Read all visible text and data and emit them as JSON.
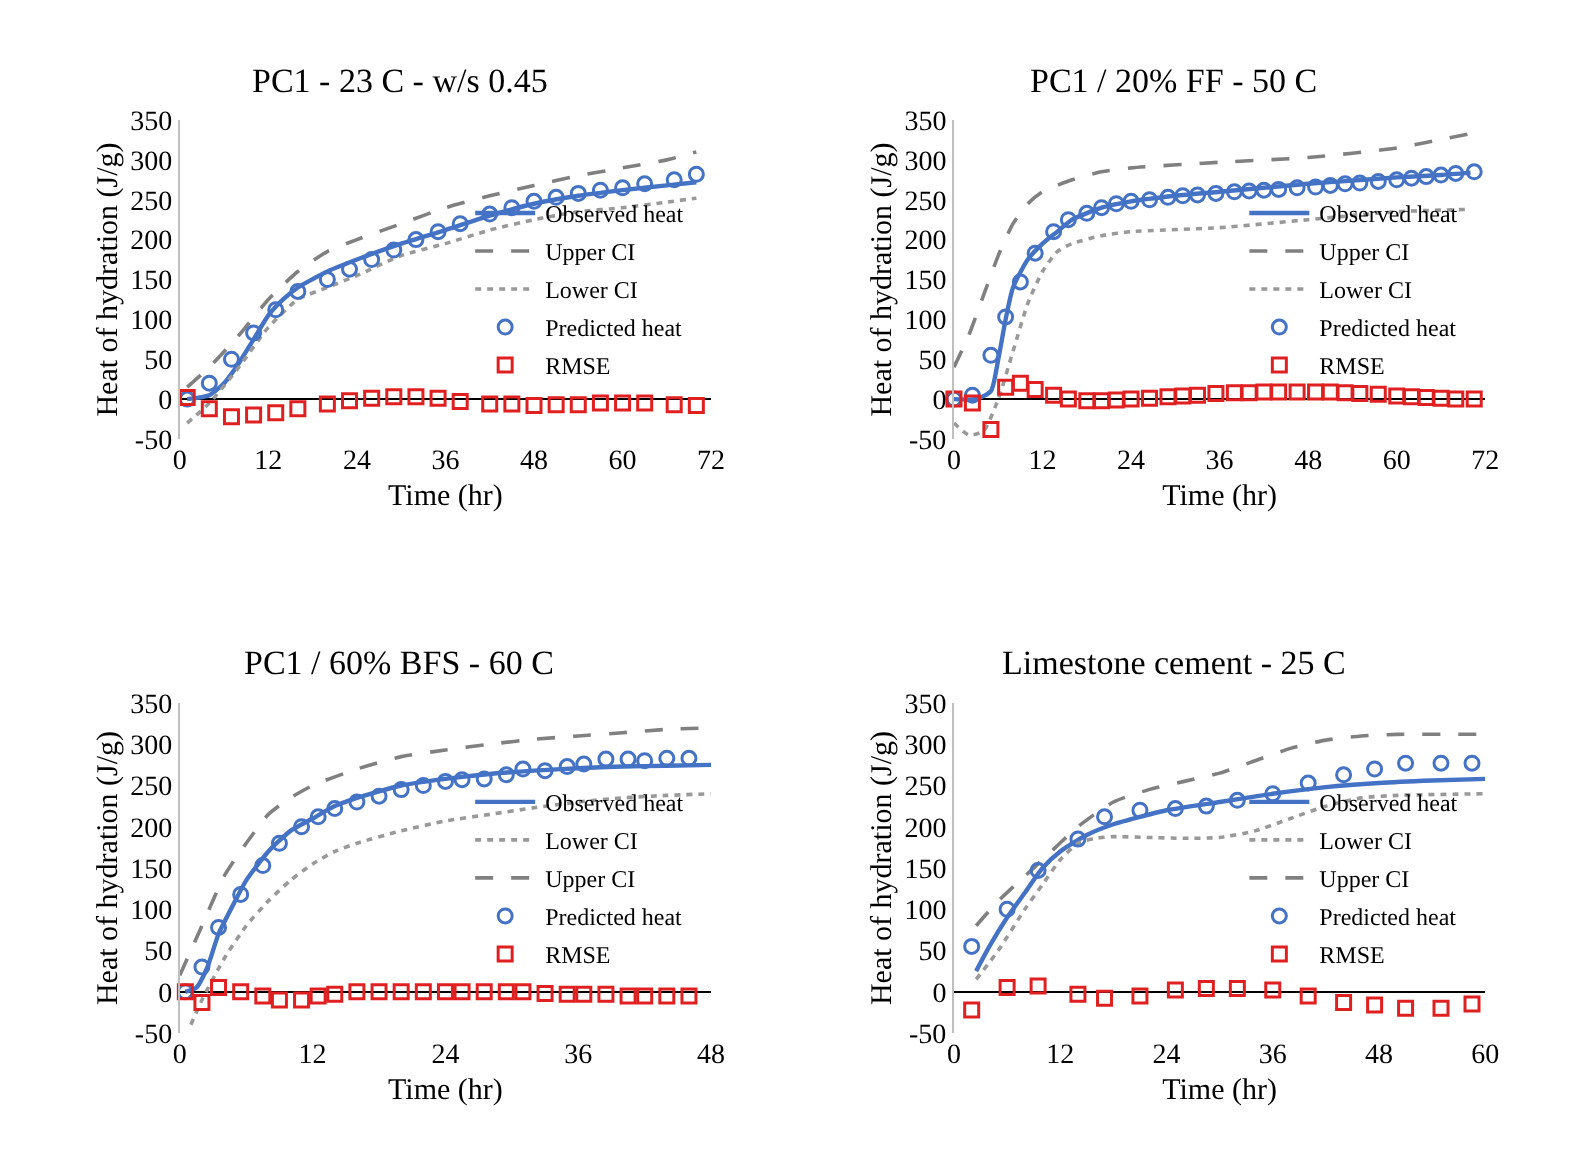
{
  "chart_data": [
    {
      "type": "line",
      "title": "PC1 - 23 C - w/s 0.45",
      "xlabel": "Time (hr)",
      "ylabel": "Heat of hydration (J/g)",
      "xlim": [
        0,
        72
      ],
      "xticks": [
        0,
        12,
        24,
        36,
        48,
        60,
        72
      ],
      "ylim": [
        -50,
        350
      ],
      "yticks": [
        -50,
        0,
        50,
        100,
        150,
        200,
        250,
        300,
        350
      ],
      "legend": "right",
      "series": [
        {
          "name": "Observed heat",
          "type": "line",
          "color": "#4472c4",
          "line_style": "solid",
          "x": [
            1,
            4,
            6,
            8,
            10,
            12,
            14,
            16,
            20,
            24,
            30,
            36,
            42,
            48,
            54,
            60,
            66,
            70
          ],
          "values": [
            0,
            5,
            20,
            45,
            75,
            105,
            125,
            140,
            160,
            175,
            195,
            212,
            230,
            245,
            255,
            262,
            268,
            272
          ]
        },
        {
          "name": "Upper CI",
          "type": "line",
          "color": "#808080",
          "line_style": "dashed",
          "x": [
            1,
            4,
            8,
            12,
            16,
            20,
            24,
            30,
            36,
            42,
            48,
            54,
            60,
            66,
            70
          ],
          "values": [
            15,
            40,
            80,
            125,
            160,
            185,
            200,
            220,
            240,
            255,
            268,
            280,
            290,
            300,
            310
          ]
        },
        {
          "name": "Lower CI",
          "type": "line",
          "color": "#999999",
          "line_style": "dotted",
          "x": [
            1,
            4,
            8,
            12,
            16,
            20,
            24,
            30,
            36,
            42,
            48,
            54,
            60,
            66,
            70
          ],
          "values": [
            -30,
            -5,
            40,
            90,
            125,
            140,
            155,
            180,
            195,
            212,
            225,
            235,
            240,
            247,
            252
          ]
        },
        {
          "name": "Predicted heat",
          "type": "scatter",
          "color": "#4472c4",
          "marker": "circle",
          "x": [
            1,
            4,
            7,
            10,
            13,
            16,
            20,
            23,
            26,
            29,
            32,
            35,
            38,
            42,
            45,
            48,
            51,
            54,
            57,
            60,
            63,
            67,
            70
          ],
          "values": [
            0,
            20,
            50,
            83,
            112,
            135,
            150,
            163,
            175,
            187,
            200,
            210,
            220,
            232,
            240,
            248,
            253,
            258,
            262,
            265,
            270,
            275,
            282
          ]
        },
        {
          "name": "RMSE",
          "type": "scatter",
          "color": "#e02020",
          "marker": "square",
          "x": [
            1,
            4,
            7,
            10,
            13,
            16,
            20,
            23,
            26,
            29,
            32,
            35,
            38,
            42,
            45,
            48,
            51,
            54,
            57,
            60,
            63,
            67,
            70
          ],
          "values": [
            2,
            -12,
            -22,
            -20,
            -17,
            -12,
            -6,
            -2,
            1,
            3,
            3,
            1,
            -3,
            -6,
            -6,
            -8,
            -7,
            -7,
            -5,
            -5,
            -5,
            -7,
            -8
          ]
        }
      ]
    },
    {
      "type": "line",
      "title": "PC1 / 20% FF - 50 C",
      "xlabel": "Time (hr)",
      "ylabel": "Heat of hydration (J/g)",
      "xlim": [
        0,
        72
      ],
      "xticks": [
        0,
        12,
        24,
        36,
        48,
        60,
        72
      ],
      "ylim": [
        -50,
        350
      ],
      "yticks": [
        -50,
        0,
        50,
        100,
        150,
        200,
        250,
        300,
        350
      ],
      "legend": "right",
      "series": [
        {
          "name": "Observed heat",
          "type": "line",
          "color": "#4472c4",
          "line_style": "solid",
          "x": [
            0,
            3,
            5,
            6,
            7,
            8,
            10,
            12,
            14,
            16,
            20,
            24,
            30,
            36,
            42,
            48,
            54,
            60,
            66,
            70
          ],
          "values": [
            0,
            0,
            10,
            50,
            100,
            140,
            175,
            195,
            210,
            225,
            240,
            248,
            255,
            260,
            265,
            270,
            274,
            278,
            281,
            284
          ]
        },
        {
          "name": "Upper CI",
          "type": "line",
          "color": "#808080",
          "line_style": "dashed",
          "x": [
            0,
            2,
            4,
            6,
            8,
            10,
            12,
            16,
            20,
            24,
            36,
            48,
            60,
            70
          ],
          "values": [
            40,
            80,
            130,
            180,
            220,
            245,
            260,
            275,
            285,
            290,
            297,
            303,
            315,
            333
          ]
        },
        {
          "name": "Lower CI",
          "type": "line",
          "color": "#999999",
          "line_style": "dotted",
          "x": [
            0,
            2,
            4,
            6,
            8,
            10,
            12,
            14,
            16,
            20,
            24,
            36,
            48,
            60,
            70
          ],
          "values": [
            -30,
            -45,
            -40,
            0,
            60,
            120,
            160,
            185,
            195,
            205,
            210,
            215,
            225,
            235,
            238
          ]
        },
        {
          "name": "Predicted heat",
          "type": "scatter",
          "color": "#4472c4",
          "marker": "circle",
          "x": [
            0,
            2.5,
            5,
            7,
            9,
            11,
            13.5,
            15.5,
            18,
            20,
            22,
            24,
            26.5,
            29,
            31,
            33,
            35.5,
            38,
            40,
            42,
            44,
            46.5,
            49,
            51,
            53,
            55,
            57.5,
            60,
            62,
            64,
            66,
            68,
            70.5
          ],
          "values": [
            0,
            5,
            55,
            103,
            147,
            183,
            210,
            225,
            233,
            240,
            245,
            248,
            250,
            253,
            255,
            256,
            258,
            260,
            261,
            262,
            263,
            265,
            266,
            268,
            270,
            271,
            273,
            275,
            277,
            279,
            281,
            283,
            285
          ]
        },
        {
          "name": "RMSE",
          "type": "scatter",
          "color": "#e02020",
          "marker": "square",
          "x": [
            0,
            2.5,
            5,
            7,
            9,
            11,
            13.5,
            15.5,
            18,
            20,
            22,
            24,
            26.5,
            29,
            31,
            33,
            35.5,
            38,
            40,
            42,
            44,
            46.5,
            49,
            51,
            53,
            55,
            57.5,
            60,
            62,
            64,
            66,
            68,
            70.5
          ],
          "values": [
            0,
            -5,
            -38,
            15,
            20,
            12,
            5,
            0,
            -2,
            -2,
            -1,
            0,
            1,
            3,
            4,
            5,
            7,
            8,
            8,
            9,
            9,
            9,
            9,
            9,
            8,
            7,
            6,
            4,
            3,
            2,
            1,
            0,
            0
          ]
        }
      ]
    },
    {
      "type": "line",
      "title": "PC1 / 60% BFS - 60 C",
      "xlabel": "Time (hr)",
      "ylabel": "Heat of hydration (J/g)",
      "xlim": [
        0,
        48
      ],
      "xticks": [
        0,
        12,
        24,
        36,
        48
      ],
      "ylim": [
        -50,
        350
      ],
      "yticks": [
        -50,
        0,
        50,
        100,
        150,
        200,
        250,
        300,
        350
      ],
      "legend": "right",
      "series": [
        {
          "name": "Observed heat",
          "type": "line",
          "color": "#4472c4",
          "line_style": "solid",
          "x": [
            0.5,
            1.5,
            2.5,
            3.5,
            5,
            6,
            8,
            10,
            12,
            14,
            16,
            18,
            20,
            24,
            28,
            32,
            36,
            40,
            44,
            48
          ],
          "values": [
            0,
            5,
            30,
            70,
            110,
            135,
            170,
            195,
            210,
            225,
            235,
            243,
            250,
            258,
            264,
            268,
            271,
            273,
            274,
            275
          ]
        },
        {
          "name": "Lower CI",
          "type": "line",
          "color": "#999999",
          "line_style": "dotted",
          "x": [
            1,
            2,
            4,
            6,
            8,
            10,
            12,
            14,
            16,
            20,
            24,
            28,
            32,
            36,
            40,
            44,
            48
          ],
          "values": [
            -40,
            -10,
            40,
            80,
            110,
            135,
            155,
            170,
            180,
            195,
            207,
            215,
            223,
            230,
            235,
            238,
            240
          ]
        },
        {
          "name": "Upper CI",
          "type": "line",
          "color": "#808080",
          "line_style": "dashed",
          "x": [
            0,
            2,
            4,
            6,
            8,
            10,
            12,
            16,
            20,
            24,
            28,
            32,
            36,
            40,
            44,
            48
          ],
          "values": [
            20,
            80,
            140,
            180,
            215,
            235,
            250,
            270,
            285,
            293,
            300,
            306,
            310,
            314,
            318,
            320
          ]
        },
        {
          "name": "Predicted heat",
          "type": "scatter",
          "color": "#4472c4",
          "marker": "circle",
          "x": [
            0.5,
            2,
            3.5,
            5.5,
            7.5,
            9,
            11,
            12.5,
            14,
            16,
            18,
            20,
            22,
            24,
            25.5,
            27.5,
            29.5,
            31,
            33,
            35,
            36.5,
            38.5,
            40.5,
            42,
            44,
            46
          ],
          "values": [
            0,
            30,
            78,
            118,
            153,
            180,
            200,
            212,
            222,
            230,
            237,
            245,
            250,
            255,
            257,
            258,
            263,
            270,
            268,
            273,
            276,
            282,
            282,
            280,
            283,
            283
          ]
        },
        {
          "name": "RMSE",
          "type": "scatter",
          "color": "#e02020",
          "marker": "square",
          "x": [
            0.5,
            2,
            3.5,
            5.5,
            7.5,
            9,
            11,
            12.5,
            14,
            16,
            18,
            20,
            22,
            24,
            25.5,
            27.5,
            29.5,
            31,
            33,
            35,
            36.5,
            38.5,
            40.5,
            42,
            44,
            46
          ],
          "values": [
            0,
            -13,
            5,
            0,
            -5,
            -10,
            -10,
            -5,
            -3,
            0,
            0,
            0,
            0,
            0,
            0,
            0,
            0,
            0,
            -2,
            -3,
            -3,
            -3,
            -5,
            -5,
            -5,
            -5
          ]
        }
      ]
    },
    {
      "type": "line",
      "title": "Limestone cement - 25 C",
      "xlabel": "Time (hr)",
      "ylabel": "Heat of hydration (J/g)",
      "xlim": [
        0,
        60
      ],
      "xticks": [
        0,
        12,
        24,
        36,
        48,
        60
      ],
      "ylim": [
        -50,
        350
      ],
      "yticks": [
        -50,
        0,
        50,
        100,
        150,
        200,
        250,
        300,
        350
      ],
      "legend": "right",
      "series": [
        {
          "name": "Observed heat",
          "type": "line",
          "color": "#4472c4",
          "line_style": "solid",
          "x": [
            2.5,
            4,
            6,
            8,
            10,
            12,
            15,
            18,
            21,
            24,
            30,
            36,
            42,
            48,
            54,
            60
          ],
          "values": [
            25,
            55,
            90,
            120,
            150,
            170,
            190,
            203,
            212,
            220,
            230,
            240,
            248,
            253,
            256,
            258
          ]
        },
        {
          "name": "Lower CI",
          "type": "line",
          "color": "#999999",
          "line_style": "dotted",
          "x": [
            2.5,
            5,
            8,
            10,
            12,
            14,
            16,
            18,
            22,
            26,
            30,
            34,
            38,
            42,
            46,
            50,
            60
          ],
          "values": [
            15,
            50,
            100,
            130,
            160,
            180,
            186,
            188,
            187,
            186,
            187,
            195,
            210,
            225,
            235,
            238,
            240
          ]
        },
        {
          "name": "Upper CI",
          "type": "line",
          "color": "#808080",
          "line_style": "dashed",
          "x": [
            2.5,
            5,
            8,
            10,
            14,
            18,
            22,
            26,
            30,
            34,
            38,
            42,
            46,
            50,
            60
          ],
          "values": [
            80,
            110,
            140,
            160,
            200,
            230,
            245,
            255,
            265,
            280,
            295,
            305,
            310,
            312,
            312
          ]
        },
        {
          "name": "Predicted heat",
          "type": "scatter",
          "color": "#4472c4",
          "marker": "circle",
          "x": [
            2,
            6,
            9.5,
            14,
            17,
            21,
            25,
            28.5,
            32,
            36,
            40,
            44,
            47.5,
            51,
            55,
            58.5
          ],
          "values": [
            55,
            100,
            147,
            185,
            212,
            220,
            222,
            225,
            232,
            240,
            253,
            263,
            270,
            277,
            277,
            277
          ]
        },
        {
          "name": "RMSE",
          "type": "scatter",
          "color": "#e02020",
          "marker": "square",
          "x": [
            2,
            6,
            9.5,
            14,
            17,
            21,
            25,
            28.5,
            32,
            36,
            40,
            44,
            47.5,
            51,
            55,
            58.5
          ],
          "values": [
            -22,
            5,
            7,
            -3,
            -8,
            -5,
            2,
            4,
            4,
            2,
            -5,
            -13,
            -16,
            -20,
            -20,
            -15
          ]
        }
      ]
    }
  ]
}
